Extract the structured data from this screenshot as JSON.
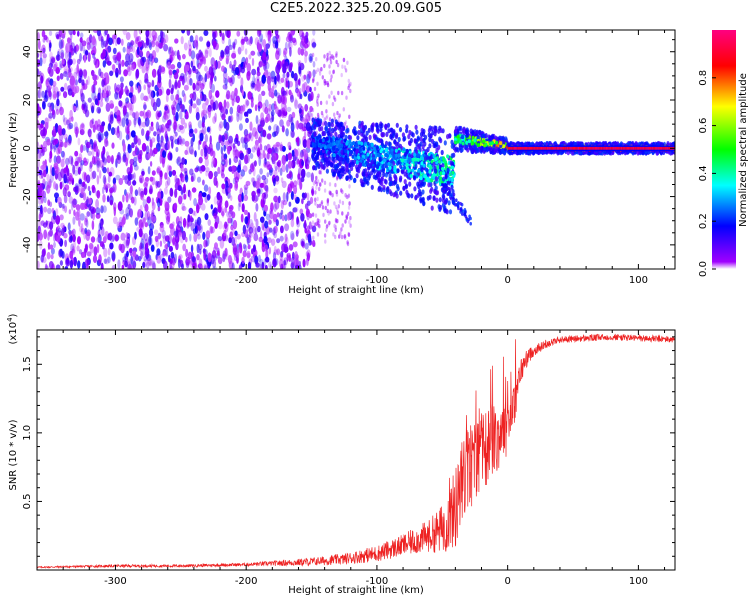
{
  "title": "C2E5.2022.325.20.09.G05",
  "chart_data": [
    {
      "type": "heatmap",
      "xlabel": "Height of straight line (km)",
      "ylabel": "Frequency (Hz)",
      "xlim": [
        -360,
        128
      ],
      "ylim": [
        -50,
        49
      ],
      "xticks": [
        -300,
        -200,
        -100,
        0,
        100
      ],
      "yticks": [
        -40,
        -20,
        0,
        20,
        40
      ],
      "colorbar": {
        "label": "Normalized spectral amplitude",
        "range": [
          0,
          1
        ],
        "ticks": [
          0.0,
          0.2,
          0.4,
          0.6,
          0.8
        ],
        "tick_labels": [
          "0.0",
          "0.2",
          "0.4",
          "0.6",
          "0.8"
        ],
        "colormap": [
          "#a000ff",
          "#0000ff",
          "#00ffff",
          "#00ff00",
          "#ffff00",
          "#ff0000",
          "#ff0080"
        ]
      },
      "regions": [
        {
          "x": [
            -360,
            -150
          ],
          "description": "broadband noise across all frequencies, low-mid amplitude"
        },
        {
          "x": [
            -150,
            -40
          ],
          "center_hz": [
            2,
            -10
          ],
          "spread_hz": [
            10,
            18
          ],
          "amplitude": [
            0.25,
            0.45
          ]
        },
        {
          "x": [
            -40,
            0
          ],
          "center_hz": [
            4,
            1
          ],
          "spread_hz": [
            5,
            3
          ],
          "amplitude": [
            0.5,
            0.85
          ]
        },
        {
          "x": [
            0,
            128
          ],
          "center_hz": [
            0,
            0
          ],
          "spread_hz": [
            2,
            2
          ],
          "amplitude": [
            0.85,
            0.95
          ]
        }
      ]
    },
    {
      "type": "line",
      "xlabel": "Height of straight line (km)",
      "ylabel": "SNR (10 * v/v)",
      "yscale_label": "(x10",
      "yscale_exp": "4",
      "xlim": [
        -360,
        128
      ],
      "ylim": [
        0,
        1.75
      ],
      "xticks": [
        -300,
        -200,
        -100,
        0,
        100
      ],
      "yticks": [
        0.5,
        1.0,
        1.5
      ],
      "ytick_labels": [
        "0.5",
        "1.0",
        "1.5"
      ],
      "series": [
        {
          "color": "#ee2222",
          "x": [
            -360,
            -300,
            -250,
            -200,
            -175,
            -150,
            -125,
            -100,
            -80,
            -60,
            -50,
            -40,
            -35,
            -30,
            -25,
            -20,
            -15,
            -10,
            -5,
            0,
            5,
            10,
            15,
            20,
            30,
            40,
            60,
            80,
            100,
            128
          ],
          "y": [
            0.02,
            0.03,
            0.03,
            0.04,
            0.05,
            0.06,
            0.08,
            0.12,
            0.18,
            0.25,
            0.3,
            0.45,
            0.6,
            0.75,
            0.8,
            0.85,
            0.9,
            0.95,
            1.0,
            1.05,
            1.2,
            1.45,
            1.55,
            1.6,
            1.65,
            1.68,
            1.69,
            1.7,
            1.69,
            1.68
          ],
          "noise": [
            0.005,
            0.01,
            0.01,
            0.012,
            0.02,
            0.03,
            0.04,
            0.06,
            0.08,
            0.12,
            0.18,
            0.3,
            0.35,
            0.35,
            0.3,
            0.3,
            0.28,
            0.25,
            0.25,
            0.2,
            0.15,
            0.1,
            0.06,
            0.04,
            0.03,
            0.025,
            0.025,
            0.025,
            0.025,
            0.025
          ]
        }
      ]
    }
  ]
}
